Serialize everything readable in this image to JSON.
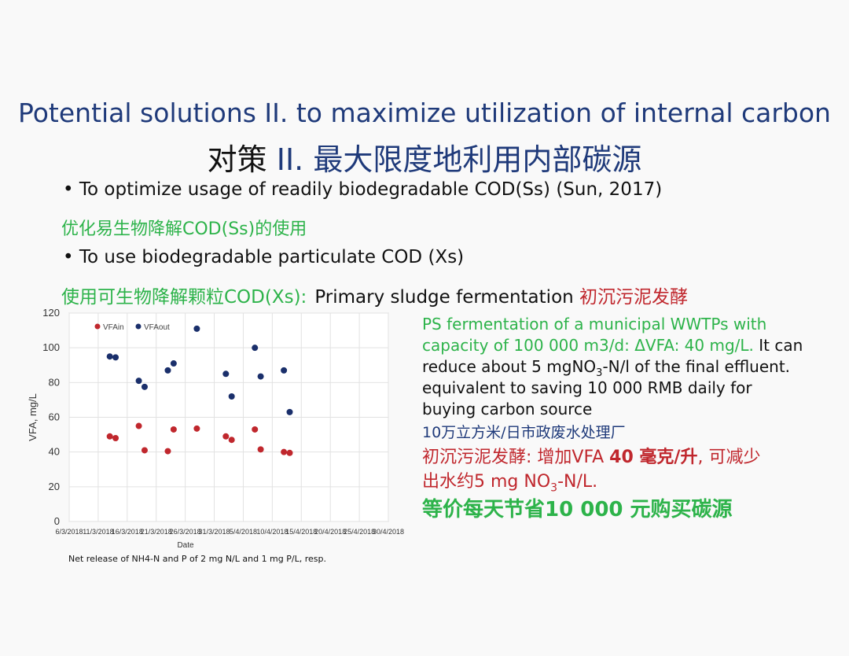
{
  "slide": {
    "title_en": "Potential solutions II. to maximize utilization of internal carbon",
    "title_cn_black": "对策 ",
    "title_cn_blue": "II. 最大限度地利用内部碳源",
    "bullet1": "• To optimize usage of readily biodegradable COD(Ss) (Sun, 2017)",
    "bullet1_cn": "优化易生物降解COD(Ss)的使用",
    "bullet2": "• To use biodegradable particulate COD (Xs)",
    "bullet2_cn": "使用可生物降解颗粒COD(Xs):",
    "bullet2_en": "Primary sludge fermentation",
    "bullet2_red": "初沉污泥发酵"
  },
  "right_text": {
    "l1": "PS fermentation of a municipal WWTPs with",
    "l2_green": "capacity of 100 000 m3/d: ΔVFA: 40 mg/L.",
    "l2_black": " It can",
    "l3_a": "reduce about 5 mgNO",
    "l3_sub": "3",
    "l3_b": "-N/l of the final effluent.",
    "l4": "equivalent to saving 10 000 RMB daily for",
    "l5": "buying carbon source",
    "l6": "10万立方米/日市政废水处理厂",
    "l7_a": "初沉污泥发酵: 增加VFA ",
    "l7_b": "40 毫克/升",
    "l7_c": ", 可减少",
    "l8_a": "出水约5 mg NO",
    "l8_sub": "3",
    "l8_b": "-N/L.",
    "l9": "等价每天节省10 000 元购买碳源"
  },
  "note": "Net release of NH4-N and P of 2 mg N/L and 1 mg P/L, resp.",
  "chart_data": {
    "type": "scatter",
    "xlabel": "Date",
    "ylabel": "VFA, mg/L",
    "ylim": [
      0,
      120
    ],
    "y_ticks": [
      "0",
      "20",
      "40",
      "60",
      "80",
      "100",
      "120"
    ],
    "x_ticks": [
      "6/3/2018",
      "11/3/2018",
      "16/3/2018",
      "21/3/2018",
      "26/3/2018",
      "31/3/2018",
      "5/4/2018",
      "10/4/2018",
      "15/4/2018",
      "20/4/2018",
      "25/4/2018",
      "30/4/2018"
    ],
    "x_start": "2018-03-06",
    "x_end": "2018-04-30",
    "grid": true,
    "legend_position": "top-left",
    "series": [
      {
        "name": "VFAin",
        "color": "#c0272d",
        "x": [
          "2018-03-13",
          "2018-03-14",
          "2018-03-18",
          "2018-03-19",
          "2018-03-23",
          "2018-03-24",
          "2018-03-28",
          "2018-04-02",
          "2018-04-03",
          "2018-04-07",
          "2018-04-08",
          "2018-04-12",
          "2018-04-13"
        ],
        "y": [
          49,
          48,
          55,
          41,
          40.5,
          53,
          53.5,
          49,
          47,
          53,
          41.5,
          40,
          39.5
        ]
      },
      {
        "name": "VFAout",
        "color": "#1a2f6b",
        "x": [
          "2018-03-13",
          "2018-03-14",
          "2018-03-18",
          "2018-03-19",
          "2018-03-23",
          "2018-03-24",
          "2018-03-28",
          "2018-04-02",
          "2018-04-03",
          "2018-04-07",
          "2018-04-08",
          "2018-04-12",
          "2018-04-13"
        ],
        "y": [
          95,
          94.5,
          81,
          77.5,
          87,
          91,
          111,
          85,
          72,
          100,
          83.5,
          87,
          63
        ]
      }
    ]
  }
}
